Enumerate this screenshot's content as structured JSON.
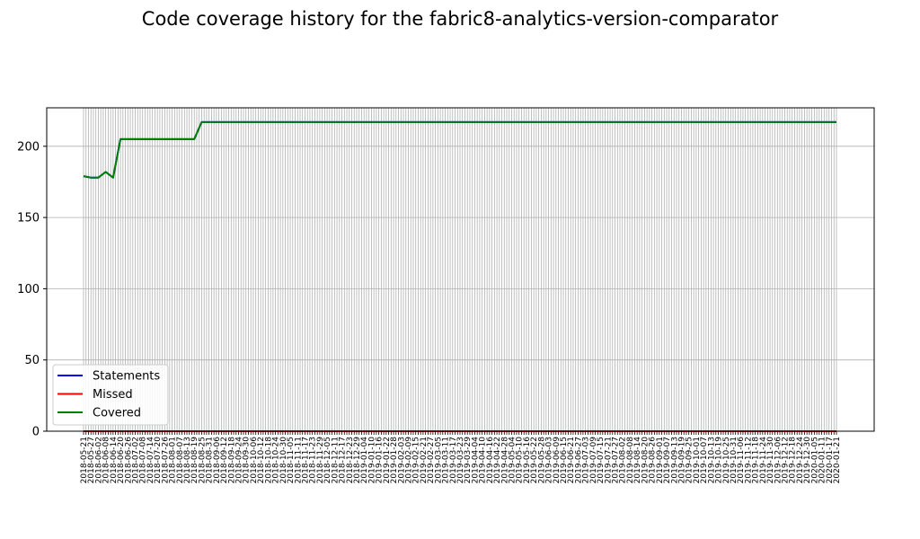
{
  "chart_data": {
    "type": "line",
    "title": "Code coverage history for the fabric8-analytics-version-comparator",
    "xlabel": "",
    "ylabel": "",
    "ylim": [
      0,
      227
    ],
    "yticks": [
      0,
      50,
      100,
      150,
      200
    ],
    "grid": "on",
    "legend_position": "lower-left",
    "x": [
      "2018-05-21",
      "2018-05-27",
      "2018-06-02",
      "2018-06-08",
      "2018-06-14",
      "2018-06-20",
      "2018-06-26",
      "2018-07-02",
      "2018-07-08",
      "2018-07-14",
      "2018-07-20",
      "2018-07-26",
      "2018-08-01",
      "2018-08-07",
      "2018-08-13",
      "2018-08-19",
      "2018-08-25",
      "2018-08-31",
      "2018-09-06",
      "2018-09-12",
      "2018-09-18",
      "2018-09-24",
      "2018-09-30",
      "2018-10-06",
      "2018-10-12",
      "2018-10-18",
      "2018-10-24",
      "2018-10-30",
      "2018-11-05",
      "2018-11-11",
      "2018-11-17",
      "2018-11-23",
      "2018-11-29",
      "2018-12-05",
      "2018-12-11",
      "2018-12-17",
      "2018-12-23",
      "2018-12-29",
      "2019-01-04",
      "2019-01-10",
      "2019-01-16",
      "2019-01-22",
      "2019-01-28",
      "2019-02-03",
      "2019-02-09",
      "2019-02-15",
      "2019-02-21",
      "2019-02-27",
      "2019-03-05",
      "2019-03-11",
      "2019-03-17",
      "2019-03-23",
      "2019-03-29",
      "2019-04-04",
      "2019-04-10",
      "2019-04-16",
      "2019-04-22",
      "2019-04-28",
      "2019-05-04",
      "2019-05-10",
      "2019-05-16",
      "2019-05-22",
      "2019-05-28",
      "2019-06-03",
      "2019-06-09",
      "2019-06-15",
      "2019-06-21",
      "2019-06-27",
      "2019-07-03",
      "2019-07-09",
      "2019-07-15",
      "2019-07-21",
      "2019-07-27",
      "2019-08-02",
      "2019-08-08",
      "2019-08-14",
      "2019-08-20",
      "2019-08-26",
      "2019-09-01",
      "2019-09-07",
      "2019-09-13",
      "2019-09-19",
      "2019-09-25",
      "2019-10-01",
      "2019-10-07",
      "2019-10-13",
      "2019-10-19",
      "2019-10-25",
      "2019-10-31",
      "2019-11-06",
      "2019-11-12",
      "2019-11-18",
      "2019-11-24",
      "2019-11-30",
      "2019-12-06",
      "2019-12-12",
      "2019-12-18",
      "2019-12-24",
      "2019-12-30",
      "2020-01-05",
      "2020-01-11",
      "2020-01-17",
      "2020-01-21"
    ],
    "series": [
      {
        "name": "Statements",
        "color": "#0000ff",
        "values": [
          179,
          178,
          178,
          182,
          178,
          205,
          205,
          205,
          205,
          205,
          205,
          205,
          205,
          205,
          205,
          205,
          217,
          217,
          217,
          217,
          217,
          217,
          217,
          217,
          217,
          217,
          217,
          217,
          217,
          217,
          217,
          217,
          217,
          217,
          217,
          217,
          217,
          217,
          217,
          217,
          217,
          217,
          217,
          217,
          217,
          217,
          217,
          217,
          217,
          217,
          217,
          217,
          217,
          217,
          217,
          217,
          217,
          217,
          217,
          217,
          217,
          217,
          217,
          217,
          217,
          217,
          217,
          217,
          217,
          217,
          217,
          217,
          217,
          217,
          217,
          217,
          217,
          217,
          217,
          217,
          217,
          217,
          217,
          217,
          217,
          217,
          217,
          217,
          217,
          217,
          217,
          217,
          217,
          217,
          217,
          217,
          217,
          217,
          217,
          217,
          217,
          217,
          217
        ]
      },
      {
        "name": "Missed",
        "color": "#ff0000",
        "values": [
          0,
          0,
          0,
          0,
          0,
          0,
          0,
          0,
          0,
          0,
          0,
          0,
          0,
          0,
          0,
          0,
          0,
          0,
          0,
          0,
          0,
          0,
          0,
          0,
          0,
          0,
          0,
          0,
          0,
          0,
          0,
          0,
          0,
          0,
          0,
          0,
          0,
          0,
          0,
          0,
          0,
          0,
          0,
          0,
          0,
          0,
          0,
          0,
          0,
          0,
          0,
          0,
          0,
          0,
          0,
          0,
          0,
          0,
          0,
          0,
          0,
          0,
          0,
          0,
          0,
          0,
          0,
          0,
          0,
          0,
          0,
          0,
          0,
          0,
          0,
          0,
          0,
          0,
          0,
          0,
          0,
          0,
          0,
          0,
          0,
          0,
          0,
          0,
          0,
          0,
          0,
          0,
          0,
          0,
          0,
          0,
          0,
          0,
          0,
          0,
          0,
          0,
          0
        ]
      },
      {
        "name": "Covered",
        "color": "#008000",
        "values": [
          179,
          178,
          178,
          182,
          178,
          205,
          205,
          205,
          205,
          205,
          205,
          205,
          205,
          205,
          205,
          205,
          217,
          217,
          217,
          217,
          217,
          217,
          217,
          217,
          217,
          217,
          217,
          217,
          217,
          217,
          217,
          217,
          217,
          217,
          217,
          217,
          217,
          217,
          217,
          217,
          217,
          217,
          217,
          217,
          217,
          217,
          217,
          217,
          217,
          217,
          217,
          217,
          217,
          217,
          217,
          217,
          217,
          217,
          217,
          217,
          217,
          217,
          217,
          217,
          217,
          217,
          217,
          217,
          217,
          217,
          217,
          217,
          217,
          217,
          217,
          217,
          217,
          217,
          217,
          217,
          217,
          217,
          217,
          217,
          217,
          217,
          217,
          217,
          217,
          217,
          217,
          217,
          217,
          217,
          217,
          217,
          217,
          217,
          217,
          217,
          217,
          217,
          217
        ]
      }
    ]
  }
}
